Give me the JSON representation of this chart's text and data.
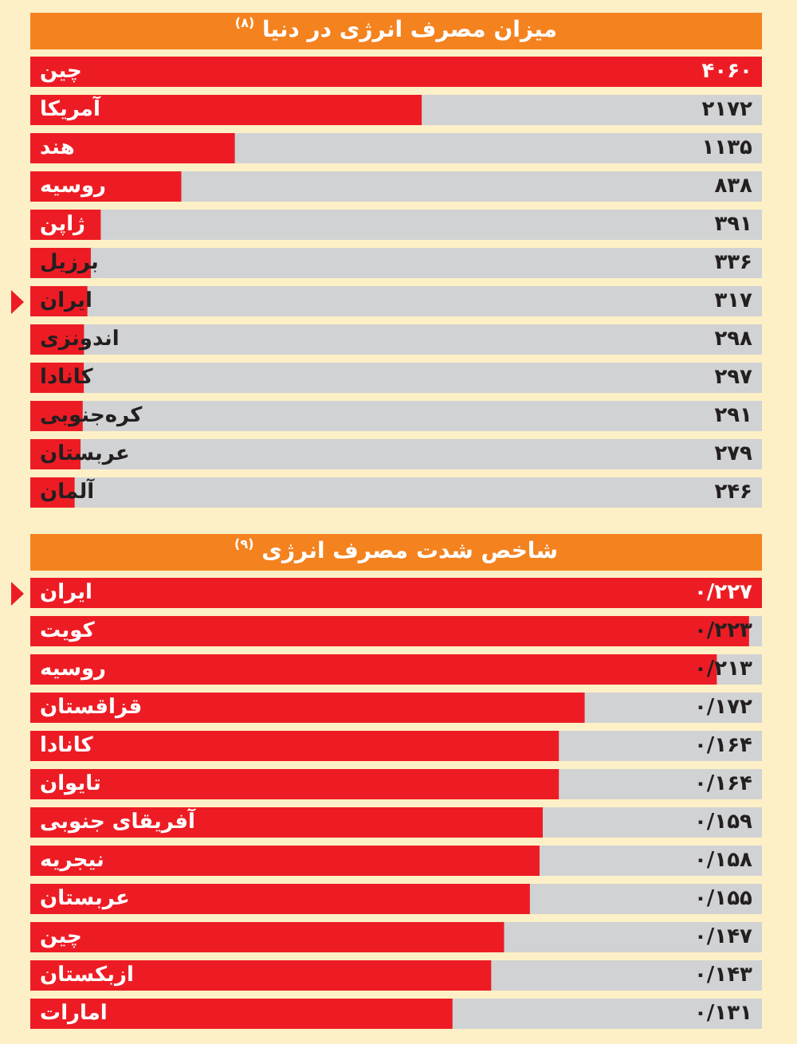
{
  "chart_data": [
    {
      "type": "bar",
      "orientation": "horizontal",
      "title": "میزان مصرف انرژی در دنیا $^{(۸)}$",
      "categories": [
        "چین",
        "آمریکا",
        "هند",
        "روسیه",
        "ژاپن",
        "برزیل",
        "ایران",
        "اندونزی",
        "کانادا",
        "کره‌جنوبی",
        "عربستان",
        "آلمان"
      ],
      "values": [
        4060,
        2172,
        1135,
        838,
        391,
        336,
        317,
        298,
        297,
        291,
        279,
        246
      ],
      "value_labels": [
        "۴۰۶۰",
        "۲۱۷۲",
        "۱۱۳۵",
        "۸۳۸",
        "۳۹۱",
        "۳۳۶",
        "۳۱۷",
        "۲۹۸",
        "۲۹۷",
        "۲۹۱",
        "۲۷۹",
        "۲۴۶"
      ],
      "color": "#ed1c24",
      "tick_labels": "y"
    },
    {
      "type": "bar",
      "orientation": "horizontal",
      "title": "شاخص شدت مصرف انرژی $^{(۹)}$",
      "categories": [
        "ایران",
        "کویت",
        "روسیه",
        "قزاقستان",
        "کانادا",
        "تایوان",
        "آفریقای جنوبی",
        "نیجریه",
        "عربستان",
        "چین",
        "ازبکستان",
        "امارات"
      ],
      "values": [
        0.227,
        0.223,
        0.213,
        0.172,
        0.164,
        0.164,
        0.159,
        0.158,
        0.155,
        0.147,
        0.143,
        0.131
      ],
      "value_labels": [
        "۰/۲۲۷",
        "۰/۲۲۳",
        "۰/۲۱۳",
        "۰/۱۷۲",
        "۰/۱۶۴",
        "۰/۱۶۴",
        "۰/۱۵۹",
        "۰/۱۵۸",
        "۰/۱۵۵",
        "۰/۱۴۷",
        "۰/۱۴۳",
        "۰/۱۳۱"
      ],
      "color": "#ed1c24",
      "tick_labels": "y"
    }
  ]
}
